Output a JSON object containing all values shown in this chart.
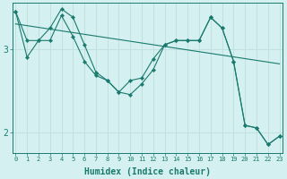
{
  "xlabel": "Humidex (Indice chaleur)",
  "background_color": "#d4f0f0",
  "line_color": "#1a7a6e",
  "grid_color": "#c0dede",
  "x_ticks": [
    0,
    1,
    2,
    3,
    4,
    5,
    6,
    7,
    8,
    9,
    10,
    11,
    12,
    13,
    14,
    15,
    16,
    17,
    18,
    19,
    20,
    21,
    22,
    23
  ],
  "y_ticks": [
    2,
    3
  ],
  "xlim": [
    -0.3,
    23.3
  ],
  "ylim": [
    1.75,
    3.55
  ],
  "series": [
    {
      "x": [
        0,
        1,
        2,
        3,
        4,
        5,
        6,
        7,
        8,
        9,
        10,
        11,
        12,
        13,
        14,
        15,
        16,
        17,
        18,
        19,
        20,
        21,
        22,
        23
      ],
      "y": [
        3.45,
        3.1,
        3.1,
        3.1,
        3.4,
        3.15,
        2.85,
        2.68,
        2.62,
        2.48,
        2.62,
        2.65,
        2.88,
        3.05,
        3.1,
        3.1,
        3.1,
        3.38,
        3.25,
        2.85,
        2.08,
        2.05,
        1.85,
        1.95
      ],
      "marker": true
    },
    {
      "x": [
        0,
        1,
        2,
        3,
        4,
        5,
        6,
        7,
        8,
        9,
        10,
        11,
        12,
        13,
        14,
        15,
        16,
        17,
        18,
        19,
        20,
        21,
        22,
        23
      ],
      "y": [
        3.45,
        2.9,
        3.1,
        3.25,
        3.48,
        3.38,
        3.05,
        2.72,
        2.62,
        2.48,
        2.45,
        2.58,
        2.75,
        3.05,
        3.1,
        3.1,
        3.1,
        3.38,
        3.25,
        2.85,
        2.08,
        2.05,
        1.85,
        1.95
      ],
      "marker": true
    },
    {
      "x": [
        0,
        23
      ],
      "y": [
        3.3,
        2.82
      ],
      "marker": false
    }
  ]
}
